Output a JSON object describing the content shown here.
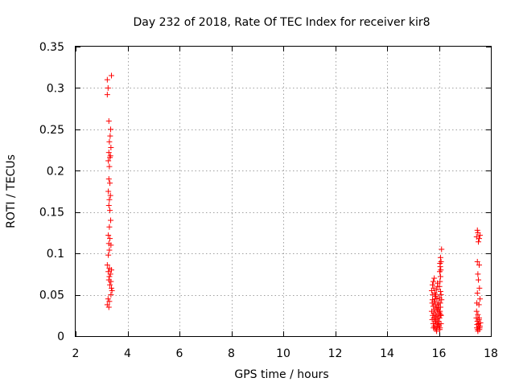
{
  "chart_data": {
    "type": "scatter",
    "title": "Day 232 of 2018, Rate Of TEC Index for receiver kir8",
    "xlabel": "GPS time / hours",
    "ylabel": "ROTI / TECUs",
    "xlim": [
      2,
      18
    ],
    "ylim": [
      0,
      0.35
    ],
    "xticks": [
      2,
      4,
      6,
      8,
      10,
      12,
      14,
      16,
      18
    ],
    "xtick_labels": [
      "2",
      "4",
      "6",
      "8",
      "10",
      "12",
      "14",
      "16",
      "18"
    ],
    "yticks": [
      0,
      0.05,
      0.1,
      0.15,
      0.2,
      0.25,
      0.3,
      0.35
    ],
    "ytick_labels": [
      "0",
      "0.05",
      "0.1",
      "0.15",
      "0.2",
      "0.25",
      "0.3",
      "0.35"
    ],
    "grid": true,
    "marker": "+",
    "color": "#ff0000",
    "series": [
      {
        "name": "ROTI",
        "points": [
          [
            3.22,
            0.31
          ],
          [
            3.38,
            0.315
          ],
          [
            3.25,
            0.3
          ],
          [
            3.22,
            0.292
          ],
          [
            3.28,
            0.26
          ],
          [
            3.35,
            0.25
          ],
          [
            3.33,
            0.242
          ],
          [
            3.3,
            0.235
          ],
          [
            3.36,
            0.228
          ],
          [
            3.28,
            0.222
          ],
          [
            3.32,
            0.216
          ],
          [
            3.26,
            0.212
          ],
          [
            3.34,
            0.218
          ],
          [
            3.3,
            0.205
          ],
          [
            3.28,
            0.19
          ],
          [
            3.32,
            0.185
          ],
          [
            3.26,
            0.175
          ],
          [
            3.34,
            0.17
          ],
          [
            3.3,
            0.165
          ],
          [
            3.28,
            0.158
          ],
          [
            3.32,
            0.152
          ],
          [
            3.35,
            0.14
          ],
          [
            3.3,
            0.132
          ],
          [
            3.26,
            0.122
          ],
          [
            3.32,
            0.118
          ],
          [
            3.28,
            0.112
          ],
          [
            3.36,
            0.11
          ],
          [
            3.3,
            0.104
          ],
          [
            3.26,
            0.098
          ],
          [
            3.22,
            0.086
          ],
          [
            3.3,
            0.082
          ],
          [
            3.38,
            0.08
          ],
          [
            3.26,
            0.078
          ],
          [
            3.34,
            0.075
          ],
          [
            3.3,
            0.072
          ],
          [
            3.28,
            0.068
          ],
          [
            3.36,
            0.066
          ],
          [
            3.32,
            0.062
          ],
          [
            3.38,
            0.058
          ],
          [
            3.4,
            0.055
          ],
          [
            3.36,
            0.05
          ],
          [
            3.25,
            0.045
          ],
          [
            3.3,
            0.042
          ],
          [
            3.22,
            0.038
          ],
          [
            3.28,
            0.035
          ],
          [
            15.72,
            0.055
          ],
          [
            15.75,
            0.062
          ],
          [
            15.78,
            0.066
          ],
          [
            15.8,
            0.058
          ],
          [
            15.82,
            0.07
          ],
          [
            15.76,
            0.05
          ],
          [
            15.84,
            0.052
          ],
          [
            15.88,
            0.048
          ],
          [
            15.92,
            0.045
          ],
          [
            15.95,
            0.06
          ],
          [
            15.74,
            0.04
          ],
          [
            15.78,
            0.036
          ],
          [
            15.82,
            0.042
          ],
          [
            15.86,
            0.038
          ],
          [
            15.9,
            0.034
          ],
          [
            15.94,
            0.032
          ],
          [
            15.98,
            0.03
          ],
          [
            16.02,
            0.028
          ],
          [
            16.06,
            0.026
          ],
          [
            15.72,
            0.03
          ],
          [
            15.76,
            0.025
          ],
          [
            15.8,
            0.022
          ],
          [
            15.84,
            0.02
          ],
          [
            15.88,
            0.018
          ],
          [
            15.92,
            0.016
          ],
          [
            15.96,
            0.014
          ],
          [
            16.0,
            0.012
          ],
          [
            16.04,
            0.01
          ],
          [
            16.08,
            0.015
          ],
          [
            15.74,
            0.02
          ],
          [
            15.78,
            0.015
          ],
          [
            15.82,
            0.012
          ],
          [
            15.86,
            0.01
          ],
          [
            15.9,
            0.008
          ],
          [
            15.94,
            0.012
          ],
          [
            15.98,
            0.018
          ],
          [
            16.02,
            0.022
          ],
          [
            16.06,
            0.035
          ],
          [
            15.86,
            0.05
          ],
          [
            15.9,
            0.056
          ],
          [
            15.94,
            0.064
          ],
          [
            15.98,
            0.04
          ],
          [
            16.02,
            0.046
          ],
          [
            16.06,
            0.054
          ],
          [
            16.1,
            0.044
          ],
          [
            16.08,
            0.05
          ],
          [
            15.8,
            0.028
          ],
          [
            15.84,
            0.032
          ],
          [
            15.88,
            0.026
          ],
          [
            15.92,
            0.024
          ],
          [
            15.96,
            0.022
          ],
          [
            16.0,
            0.035
          ],
          [
            16.04,
            0.03
          ],
          [
            16.08,
            0.025
          ],
          [
            15.75,
            0.044
          ],
          [
            15.85,
            0.045
          ],
          [
            15.95,
            0.038
          ],
          [
            16.05,
            0.04
          ],
          [
            15.79,
            0.01
          ],
          [
            15.91,
            0.006
          ],
          [
            16.03,
            0.008
          ],
          [
            16.02,
            0.06
          ],
          [
            16.04,
            0.066
          ],
          [
            16.06,
            0.072
          ],
          [
            16.03,
            0.078
          ],
          [
            16.05,
            0.084
          ],
          [
            16.08,
            0.09
          ],
          [
            16.06,
            0.095
          ],
          [
            16.1,
            0.105
          ],
          [
            16.04,
            0.088
          ],
          [
            16.07,
            0.08
          ],
          [
            17.45,
            0.12
          ],
          [
            17.5,
            0.125
          ],
          [
            17.55,
            0.118
          ],
          [
            17.52,
            0.114
          ],
          [
            17.48,
            0.128
          ],
          [
            17.58,
            0.122
          ],
          [
            17.48,
            0.09
          ],
          [
            17.55,
            0.086
          ],
          [
            17.5,
            0.075
          ],
          [
            17.52,
            0.068
          ],
          [
            17.56,
            0.058
          ],
          [
            17.48,
            0.052
          ],
          [
            17.58,
            0.045
          ],
          [
            17.46,
            0.04
          ],
          [
            17.54,
            0.038
          ],
          [
            17.45,
            0.03
          ],
          [
            17.5,
            0.026
          ],
          [
            17.55,
            0.022
          ],
          [
            17.48,
            0.018
          ],
          [
            17.52,
            0.015
          ],
          [
            17.58,
            0.012
          ],
          [
            17.46,
            0.01
          ],
          [
            17.56,
            0.008
          ],
          [
            17.5,
            0.006
          ],
          [
            17.44,
            0.022
          ],
          [
            17.54,
            0.02
          ],
          [
            17.6,
            0.016
          ],
          [
            17.47,
            0.014
          ],
          [
            17.53,
            0.012
          ],
          [
            17.57,
            0.01
          ],
          [
            17.49,
            0.008
          ]
        ]
      }
    ]
  }
}
